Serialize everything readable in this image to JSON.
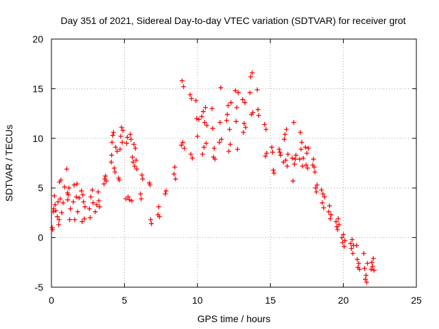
{
  "colors": {
    "series": "#ff0000",
    "grid": "#a0a0a0",
    "axis": "#000000"
  },
  "chart_data": {
    "type": "scatter",
    "title": "Day 351 of 2021, Sidereal Day-to-day VTEC variation (SDTVAR) for receiver grot",
    "xlabel": "GPS time / hours",
    "ylabel": "SDTVAR / TECUs",
    "xlim": [
      0,
      25
    ],
    "ylim": [
      -5,
      20
    ],
    "xticks": [
      0,
      5,
      10,
      15,
      20,
      25
    ],
    "yticks": [
      -5,
      0,
      5,
      10,
      15,
      20
    ],
    "xtick_labels": [
      "0",
      "5",
      "10",
      "15",
      "20",
      "25"
    ],
    "ytick_labels": [
      "-5",
      "0",
      "5",
      "10",
      "15",
      "20"
    ],
    "grid": true,
    "marker": "+",
    "series": [
      {
        "name": "SDTVAR",
        "points": [
          [
            0.05,
            1.0
          ],
          [
            0.08,
            0.8
          ],
          [
            0.12,
            2.6
          ],
          [
            0.15,
            2.9
          ],
          [
            0.2,
            4.2
          ],
          [
            0.25,
            3.3
          ],
          [
            0.3,
            2.7
          ],
          [
            0.4,
            2.1
          ],
          [
            0.45,
            3.6
          ],
          [
            0.5,
            1.3
          ],
          [
            0.52,
            1.8
          ],
          [
            0.55,
            5.6
          ],
          [
            0.6,
            3.9
          ],
          [
            0.65,
            5.8
          ],
          [
            0.7,
            2.5
          ],
          [
            0.8,
            3.5
          ],
          [
            0.9,
            5.1
          ],
          [
            1.05,
            6.9
          ],
          [
            1.1,
            4.5
          ],
          [
            1.12,
            3.8
          ],
          [
            1.15,
            4.3
          ],
          [
            1.2,
            5.0
          ],
          [
            1.25,
            1.8
          ],
          [
            1.3,
            2.9
          ],
          [
            1.5,
            3.6
          ],
          [
            1.55,
            5.3
          ],
          [
            1.6,
            1.8
          ],
          [
            1.7,
            4.1
          ],
          [
            1.75,
            5.4
          ],
          [
            1.8,
            2.6
          ],
          [
            1.9,
            4.0
          ],
          [
            2.05,
            4.7
          ],
          [
            2.1,
            1.6
          ],
          [
            2.15,
            4.3
          ],
          [
            2.2,
            3.6
          ],
          [
            2.25,
            1.9
          ],
          [
            2.3,
            3.1
          ],
          [
            2.6,
            2.9
          ],
          [
            2.65,
            2.0
          ],
          [
            2.7,
            4.1
          ],
          [
            2.8,
            4.8
          ],
          [
            2.85,
            3.5
          ],
          [
            3.0,
            2.6
          ],
          [
            3.1,
            3.3
          ],
          [
            3.2,
            4.6
          ],
          [
            3.25,
            3.7
          ],
          [
            3.3,
            3.1
          ],
          [
            3.6,
            5.4
          ],
          [
            3.65,
            5.9
          ],
          [
            3.7,
            6.2
          ],
          [
            3.75,
            5.7
          ],
          [
            4.1,
            7.6
          ],
          [
            4.12,
            8.3
          ],
          [
            4.15,
            9.6
          ],
          [
            4.2,
            10.3
          ],
          [
            4.25,
            10.6
          ],
          [
            4.3,
            7.0
          ],
          [
            4.35,
            6.6
          ],
          [
            4.4,
            9.1
          ],
          [
            4.5,
            8.7
          ],
          [
            4.6,
            6.0
          ],
          [
            4.65,
            5.8
          ],
          [
            4.7,
            8.9
          ],
          [
            4.75,
            10.2
          ],
          [
            4.8,
            11.1
          ],
          [
            4.85,
            9.6
          ],
          [
            4.9,
            10.8
          ],
          [
            5.1,
            3.9
          ],
          [
            5.15,
            9.5
          ],
          [
            5.2,
            10.1
          ],
          [
            5.25,
            4.1
          ],
          [
            5.35,
            3.8
          ],
          [
            5.4,
            10.4
          ],
          [
            5.45,
            9.9
          ],
          [
            5.5,
            3.7
          ],
          [
            5.55,
            8.1
          ],
          [
            5.6,
            7.6
          ],
          [
            5.65,
            9.4
          ],
          [
            5.7,
            7.2
          ],
          [
            5.75,
            9.0
          ],
          [
            5.8,
            7.8
          ],
          [
            5.85,
            6.9
          ],
          [
            6.1,
            4.4
          ],
          [
            6.15,
            3.9
          ],
          [
            6.2,
            6.3
          ],
          [
            6.25,
            5.9
          ],
          [
            6.7,
            5.5
          ],
          [
            6.75,
            5.3
          ],
          [
            6.8,
            1.8
          ],
          [
            6.85,
            1.4
          ],
          [
            7.3,
            2.3
          ],
          [
            7.35,
            3.1
          ],
          [
            7.4,
            2.1
          ],
          [
            7.8,
            4.4
          ],
          [
            7.85,
            4.7
          ],
          [
            8.4,
            6.4
          ],
          [
            8.45,
            7.1
          ],
          [
            8.5,
            5.9
          ],
          [
            8.9,
            9.3
          ],
          [
            8.95,
            15.8
          ],
          [
            9.0,
            9.6
          ],
          [
            9.05,
            15.2
          ],
          [
            9.1,
            9.0
          ],
          [
            9.5,
            14.4
          ],
          [
            9.55,
            8.4
          ],
          [
            9.6,
            14.0
          ],
          [
            9.65,
            8.0
          ],
          [
            9.9,
            13.8
          ],
          [
            9.95,
            12.0
          ],
          [
            10.0,
            10.2
          ],
          [
            10.1,
            11.9
          ],
          [
            10.3,
            12.2
          ],
          [
            10.35,
            8.4
          ],
          [
            10.4,
            12.7
          ],
          [
            10.45,
            9.1
          ],
          [
            10.5,
            11.6
          ],
          [
            10.55,
            13.1
          ],
          [
            10.6,
            9.5
          ],
          [
            10.65,
            11.3
          ],
          [
            11.0,
            13.0
          ],
          [
            11.05,
            11.0
          ],
          [
            11.1,
            8.1
          ],
          [
            11.15,
            9.0
          ],
          [
            11.2,
            7.9
          ],
          [
            11.5,
            9.6
          ],
          [
            11.55,
            11.6
          ],
          [
            11.6,
            15.1
          ],
          [
            11.65,
            9.9
          ],
          [
            12.0,
            11.8
          ],
          [
            12.05,
            12.4
          ],
          [
            12.1,
            13.3
          ],
          [
            12.15,
            8.7
          ],
          [
            12.2,
            10.9
          ],
          [
            12.25,
            9.4
          ],
          [
            12.3,
            13.6
          ],
          [
            12.6,
            14.8
          ],
          [
            12.65,
            11.7
          ],
          [
            12.7,
            13.1
          ],
          [
            12.75,
            8.9
          ],
          [
            12.8,
            14.6
          ],
          [
            13.1,
            13.9
          ],
          [
            13.15,
            10.6
          ],
          [
            13.2,
            11.5
          ],
          [
            13.25,
            13.6
          ],
          [
            13.3,
            11.1
          ],
          [
            13.6,
            14.6
          ],
          [
            13.65,
            16.2
          ],
          [
            13.7,
            12.4
          ],
          [
            13.75,
            16.6
          ],
          [
            13.8,
            12.6
          ],
          [
            14.1,
            14.9
          ],
          [
            14.15,
            12.9
          ],
          [
            14.2,
            12.3
          ],
          [
            14.6,
            11.4
          ],
          [
            14.65,
            8.2
          ],
          [
            14.7,
            10.9
          ],
          [
            14.75,
            8.5
          ],
          [
            15.1,
            9.1
          ],
          [
            15.15,
            8.6
          ],
          [
            15.2,
            6.8
          ],
          [
            15.25,
            6.5
          ],
          [
            15.6,
            8.9
          ],
          [
            15.65,
            8.6
          ],
          [
            15.7,
            8.3
          ],
          [
            15.9,
            7.6
          ],
          [
            15.95,
            9.9
          ],
          [
            16.0,
            10.4
          ],
          [
            16.05,
            7.8
          ],
          [
            16.1,
            10.9
          ],
          [
            16.15,
            7.2
          ],
          [
            16.2,
            8.4
          ],
          [
            16.5,
            8.0
          ],
          [
            16.55,
            5.7
          ],
          [
            16.6,
            11.6
          ],
          [
            16.65,
            7.4
          ],
          [
            16.7,
            7.9
          ],
          [
            16.75,
            8.3
          ],
          [
            17.0,
            7.9
          ],
          [
            17.05,
            10.6
          ],
          [
            17.1,
            8.9
          ],
          [
            17.15,
            9.6
          ],
          [
            17.2,
            7.2
          ],
          [
            17.25,
            8.0
          ],
          [
            17.4,
            9.1
          ],
          [
            17.45,
            7.3
          ],
          [
            17.5,
            8.5
          ],
          [
            17.55,
            7.0
          ],
          [
            17.6,
            9.0
          ],
          [
            17.9,
            7.3
          ],
          [
            17.95,
            7.9
          ],
          [
            18.0,
            7.1
          ],
          [
            18.05,
            6.6
          ],
          [
            18.1,
            5.0
          ],
          [
            18.15,
            4.6
          ],
          [
            18.2,
            5.3
          ],
          [
            18.5,
            4.8
          ],
          [
            18.55,
            3.5
          ],
          [
            18.6,
            4.4
          ],
          [
            18.65,
            3.0
          ],
          [
            18.7,
            4.1
          ],
          [
            19.0,
            2.6
          ],
          [
            19.05,
            3.2
          ],
          [
            19.1,
            1.9
          ],
          [
            19.15,
            2.3
          ],
          [
            19.5,
            1.6
          ],
          [
            19.55,
            1.1
          ],
          [
            19.6,
            0.8
          ],
          [
            19.65,
            1.9
          ],
          [
            19.7,
            1.3
          ],
          [
            19.9,
            0.0
          ],
          [
            19.95,
            -0.5
          ],
          [
            20.0,
            0.3
          ],
          [
            20.05,
            -0.9
          ],
          [
            20.1,
            -0.3
          ],
          [
            20.5,
            -0.6
          ],
          [
            20.55,
            -1.1
          ],
          [
            20.6,
            -0.2
          ],
          [
            20.65,
            -1.6
          ],
          [
            20.7,
            -0.8
          ],
          [
            20.9,
            -0.8
          ],
          [
            20.95,
            -2.2
          ],
          [
            21.0,
            -3.0
          ],
          [
            21.05,
            -2.6
          ],
          [
            21.1,
            -3.2
          ],
          [
            21.4,
            -1.6
          ],
          [
            21.45,
            -3.1
          ],
          [
            21.5,
            -4.2
          ],
          [
            21.55,
            -3.8
          ],
          [
            21.6,
            -4.5
          ],
          [
            21.65,
            -2.6
          ],
          [
            21.9,
            -3.2
          ],
          [
            21.95,
            -2.5
          ],
          [
            22.0,
            -2.9
          ],
          [
            22.05,
            -2.1
          ],
          [
            22.1,
            -3.3
          ]
        ]
      }
    ]
  }
}
